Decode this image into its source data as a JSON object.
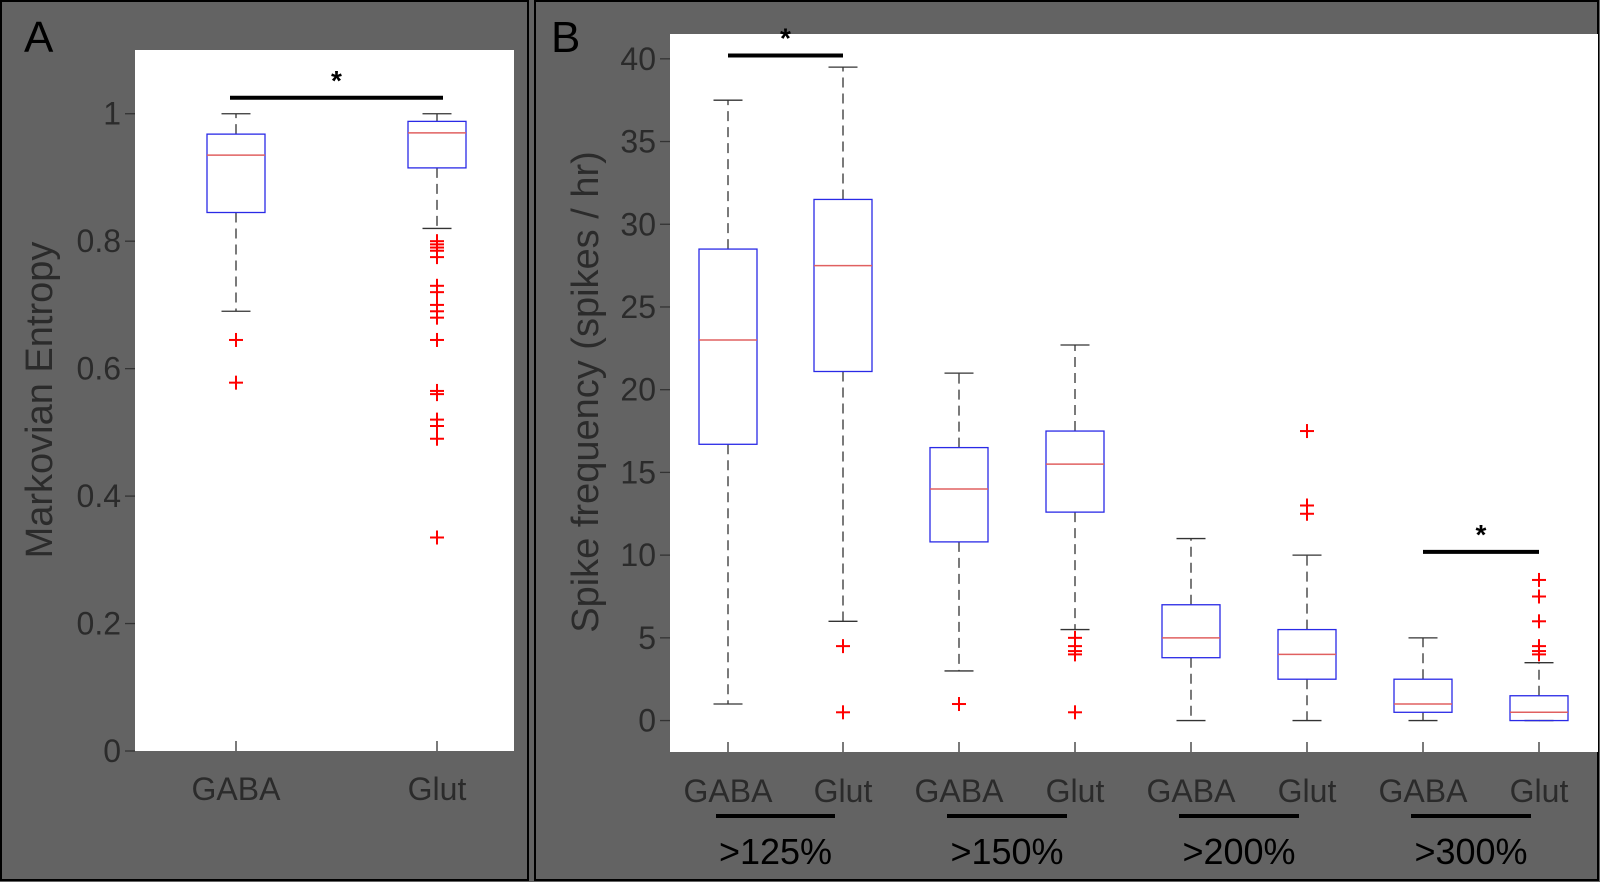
{
  "chart_data": [
    {
      "panel": "A",
      "type": "box",
      "ylabel": "Markovian Entropy",
      "ylim": [
        0,
        1.1
      ],
      "yticks": [
        0,
        0.2,
        0.4,
        0.6,
        0.8,
        1
      ],
      "ytick_labels": [
        "0",
        "0.2",
        "0.4",
        "0.6",
        "0.8",
        "1"
      ],
      "categories": [
        "GABA",
        "Glut"
      ],
      "boxes": [
        {
          "name": "GABA",
          "whisker_low": 0.69,
          "q1": 0.845,
          "median": 0.935,
          "q3": 0.968,
          "whisker_high": 1.0,
          "outliers": [
            0.645,
            0.578
          ]
        },
        {
          "name": "Glut",
          "whisker_low": 0.82,
          "q1": 0.915,
          "median": 0.97,
          "q3": 0.988,
          "whisker_high": 1.0,
          "outliers": [
            0.8,
            0.795,
            0.79,
            0.785,
            0.775,
            0.73,
            0.72,
            0.7,
            0.69,
            0.68,
            0.645,
            0.565,
            0.56,
            0.52,
            0.51,
            0.49,
            0.335
          ]
        }
      ],
      "significance": [
        {
          "from": 0,
          "to": 1,
          "y": 1.025,
          "label": "*"
        }
      ]
    },
    {
      "panel": "B",
      "type": "box",
      "ylabel": "Spike frequency (spikes / hr)",
      "ylim": [
        -1.9,
        41.5
      ],
      "yticks": [
        0,
        5,
        10,
        15,
        20,
        25,
        30,
        35,
        40
      ],
      "ytick_labels": [
        "0",
        "5",
        "10",
        "15",
        "20",
        "25",
        "30",
        "35",
        "40"
      ],
      "categories": [
        "GABA",
        "Glut",
        "GABA",
        "Glut",
        "GABA",
        "Glut",
        "GABA",
        "Glut"
      ],
      "groups": [
        ">125%",
        ">150%",
        ">200%",
        ">300%"
      ],
      "boxes": [
        {
          "name": "GABA",
          "group": ">125%",
          "whisker_low": 1,
          "q1": 16.7,
          "median": 23,
          "q3": 28.5,
          "whisker_high": 37.5,
          "outliers": []
        },
        {
          "name": "Glut",
          "group": ">125%",
          "whisker_low": 6,
          "q1": 21.1,
          "median": 27.5,
          "q3": 31.5,
          "whisker_high": 39.5,
          "outliers": [
            4.5,
            0.5
          ]
        },
        {
          "name": "GABA",
          "group": ">150%",
          "whisker_low": 3,
          "q1": 10.8,
          "median": 14,
          "q3": 16.5,
          "whisker_high": 21,
          "outliers": [
            1
          ]
        },
        {
          "name": "Glut",
          "group": ">150%",
          "whisker_low": 5.5,
          "q1": 12.6,
          "median": 15.5,
          "q3": 17.5,
          "whisker_high": 22.7,
          "outliers": [
            5,
            4.5,
            4.2,
            4,
            0.5
          ]
        },
        {
          "name": "GABA",
          "group": ">200%",
          "whisker_low": 0,
          "q1": 3.8,
          "median": 5,
          "q3": 7,
          "whisker_high": 11,
          "outliers": []
        },
        {
          "name": "Glut",
          "group": ">200%",
          "whisker_low": 0,
          "q1": 2.5,
          "median": 4,
          "q3": 5.5,
          "whisker_high": 10,
          "outliers": [
            17.5,
            13,
            12.5
          ]
        },
        {
          "name": "GABA",
          "group": ">300%",
          "whisker_low": 0,
          "q1": 0.5,
          "median": 1,
          "q3": 2.5,
          "whisker_high": 5,
          "outliers": []
        },
        {
          "name": "Glut",
          "group": ">300%",
          "whisker_low": 0,
          "q1": 0,
          "median": 0.5,
          "q3": 1.5,
          "whisker_high": 3.5,
          "outliers": [
            8.5,
            7.5,
            6,
            4.5,
            4.2,
            4
          ]
        }
      ],
      "significance": [
        {
          "from": 0,
          "to": 1,
          "y": 40.2,
          "label": "*"
        },
        {
          "from": 6,
          "to": 7,
          "y": 10.2,
          "label": "*"
        }
      ]
    }
  ]
}
